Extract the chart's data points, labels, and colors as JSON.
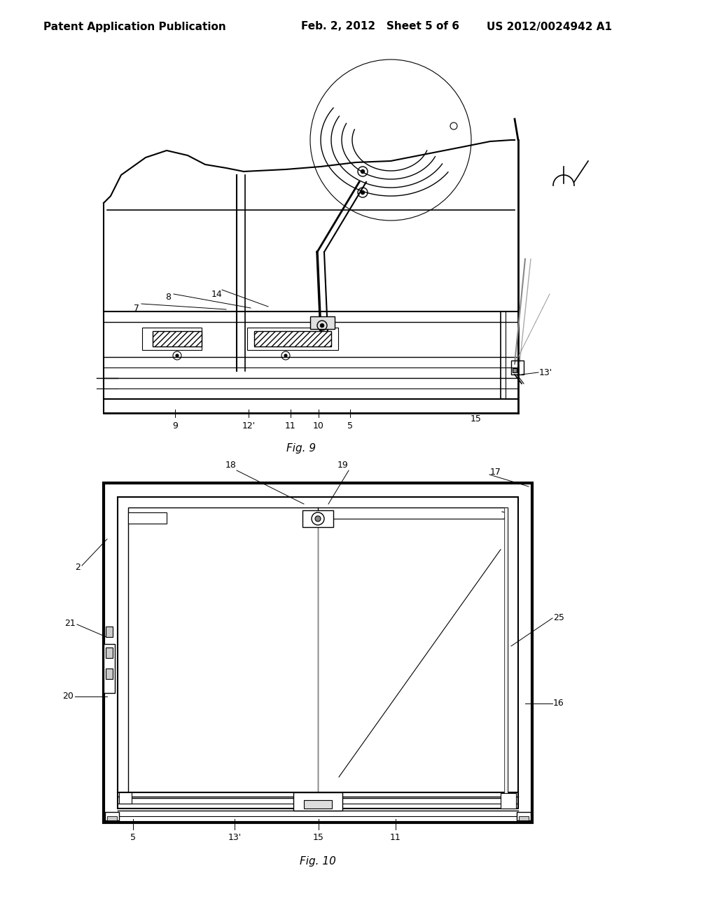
{
  "background_color": "#ffffff",
  "header_left": "Patent Application Publication",
  "header_center": "Feb. 2, 2012   Sheet 5 of 6",
  "header_right": "US 2012/0024942 A1",
  "fig9_label": "Fig. 9",
  "fig10_label": "Fig. 10",
  "lc": "#000000"
}
